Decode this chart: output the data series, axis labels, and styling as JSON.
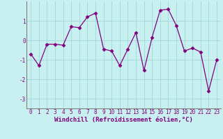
{
  "x": [
    0,
    1,
    2,
    3,
    4,
    5,
    6,
    7,
    8,
    9,
    10,
    11,
    12,
    13,
    14,
    15,
    16,
    17,
    18,
    19,
    20,
    21,
    22,
    23
  ],
  "y": [
    -0.7,
    -1.3,
    -0.2,
    -0.2,
    -0.25,
    0.7,
    0.65,
    1.2,
    1.4,
    -0.45,
    -0.55,
    -1.3,
    -0.45,
    0.4,
    -1.55,
    0.15,
    1.55,
    1.6,
    0.75,
    -0.55,
    -0.4,
    -0.6,
    -2.6,
    -1.0
  ],
  "line_color": "#800080",
  "marker": "D",
  "markersize": 2.5,
  "linewidth": 0.9,
  "background_color": "#c8f0f0",
  "grid_color": "#a0d8d8",
  "xlabel": "Windchill (Refroidissement éolien,°C)",
  "ylim": [
    -3.5,
    2.0
  ],
  "xlim": [
    -0.5,
    23.5
  ],
  "yticks": [
    -3,
    -2,
    -1,
    0,
    1
  ],
  "xticks": [
    0,
    1,
    2,
    3,
    4,
    5,
    6,
    7,
    8,
    9,
    10,
    11,
    12,
    13,
    14,
    15,
    16,
    17,
    18,
    19,
    20,
    21,
    22,
    23
  ],
  "tick_fontsize": 5.5,
  "xlabel_fontsize": 6.5
}
